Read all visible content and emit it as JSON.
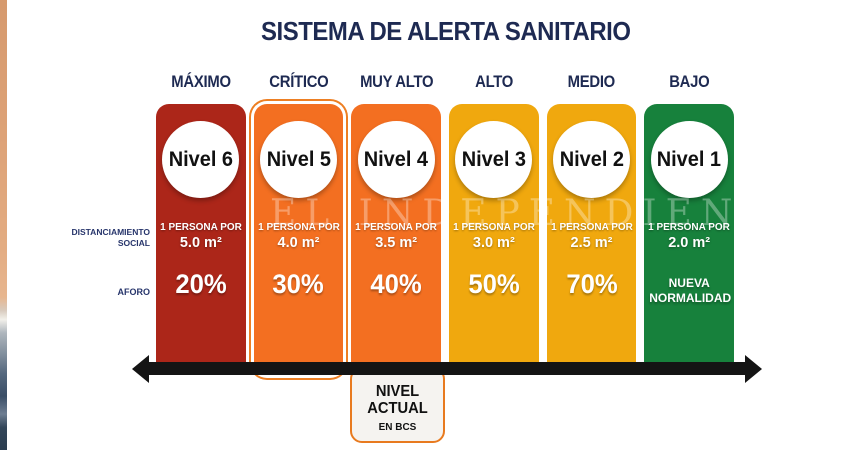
{
  "title": "SISTEMA DE ALERTA SANITARIO",
  "watermark": "EL INDEPENDIENTE",
  "side_labels": {
    "distancing_line1": "DISTANCIAMIENTO",
    "distancing_line2": "SOCIAL",
    "capacity": "AFORO"
  },
  "levels": [
    {
      "header": "MÁXIMO",
      "name": "Nivel 6",
      "persona_label": "1 PERSONA POR",
      "area": "5.0 m²",
      "capacity": "20%",
      "color": "#ac2619",
      "highlighted": false
    },
    {
      "header": "CRÍTICO",
      "name": "Nivel 5",
      "persona_label": "1 PERSONA POR",
      "area": "4.0 m²",
      "capacity": "30%",
      "color": "#f36f21",
      "highlighted": true
    },
    {
      "header": "MUY ALTO",
      "name": "Nivel 4",
      "persona_label": "1 PERSONA POR",
      "area": "3.5 m²",
      "capacity": "40%",
      "color": "#f36f21",
      "highlighted": false
    },
    {
      "header": "ALTO",
      "name": "Nivel 3",
      "persona_label": "1 PERSONA POR",
      "area": "3.0 m²",
      "capacity": "50%",
      "color": "#f0a80e",
      "highlighted": false
    },
    {
      "header": "MEDIO",
      "name": "Nivel 2",
      "persona_label": "1 PERSONA POR",
      "area": "2.5 m²",
      "capacity": "70%",
      "color": "#f0a80e",
      "highlighted": false
    },
    {
      "header": "BAJO",
      "name": "Nivel 1",
      "persona_label": "1 PERSONA POR",
      "area": "2.0 m²",
      "capacity": "NUEVA NORMALIDAD",
      "color": "#17813c",
      "highlighted": false
    }
  ],
  "current_level_badge": {
    "line1": "NIVEL",
    "line2": "ACTUAL",
    "line3": "EN BCS"
  },
  "colors": {
    "title_text": "#1e2a52",
    "header_text": "#1e2a52",
    "side_label_text": "#27356b",
    "highlight_outline": "#ed7f23",
    "badge_border": "#e87a1f",
    "arrow": "#141414"
  }
}
